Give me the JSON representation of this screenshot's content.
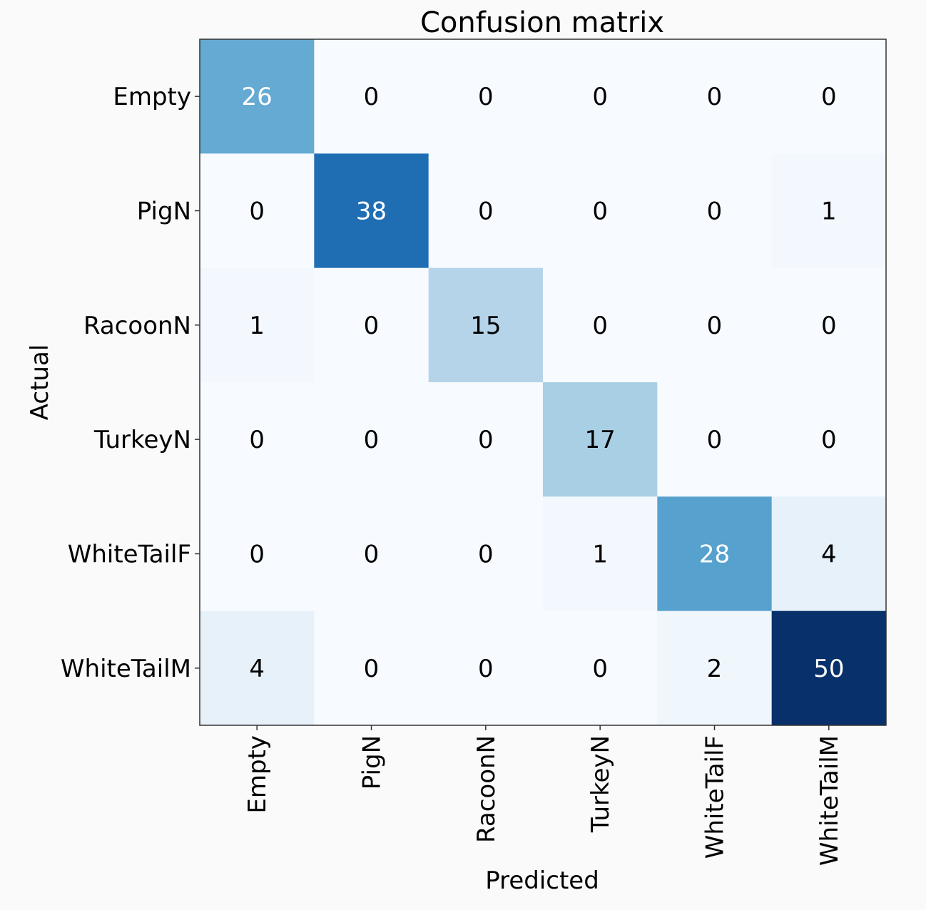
{
  "chart_data": {
    "type": "heatmap",
    "title": "Confusion matrix",
    "xlabel": "Predicted",
    "ylabel": "Actual",
    "x_categories": [
      "Empty",
      "PigN",
      "RacoonN",
      "TurkeyN",
      "WhiteTailF",
      "WhiteTailM"
    ],
    "y_categories": [
      "Empty",
      "PigN",
      "RacoonN",
      "TurkeyN",
      "WhiteTailF",
      "WhiteTailM"
    ],
    "values": [
      [
        26,
        0,
        0,
        0,
        0,
        0
      ],
      [
        0,
        38,
        0,
        0,
        0,
        1
      ],
      [
        1,
        0,
        15,
        0,
        0,
        0
      ],
      [
        0,
        0,
        0,
        17,
        0,
        0
      ],
      [
        0,
        0,
        0,
        1,
        28,
        4
      ],
      [
        4,
        0,
        0,
        0,
        2,
        50
      ]
    ],
    "colormap": "Blues",
    "colorbar": false,
    "grid": false
  }
}
